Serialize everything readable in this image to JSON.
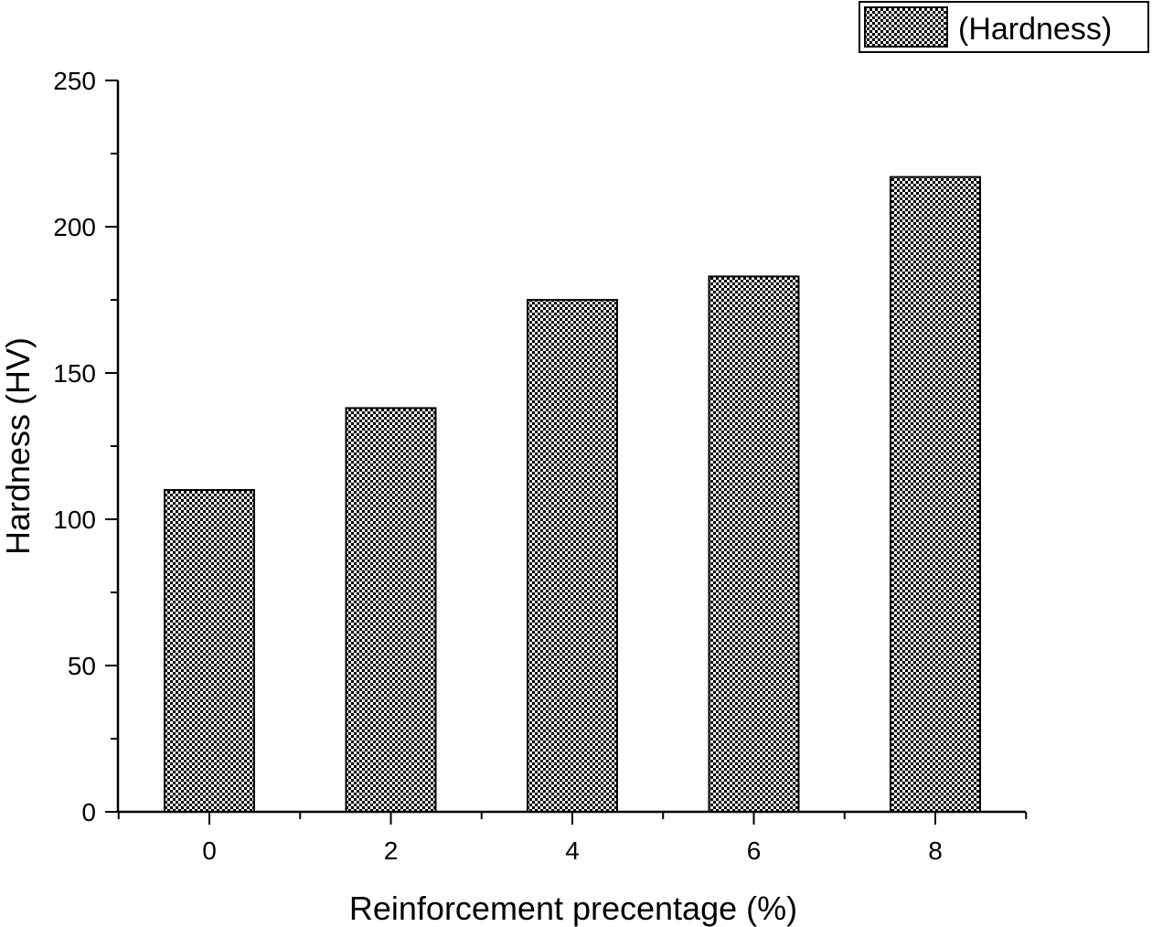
{
  "chart_data": {
    "type": "bar",
    "categories": [
      "0",
      "2",
      "4",
      "6",
      "8"
    ],
    "series": [
      {
        "name": "(Hardness)",
        "values": [
          110,
          138,
          175,
          183,
          217
        ]
      }
    ],
    "xlabel": "Reinforcement precentage (%)",
    "ylabel": "Hardness (HV)",
    "ylim": [
      0,
      250
    ],
    "yticks": [
      "0",
      "50",
      "100",
      "150",
      "200",
      "250"
    ],
    "grid": false,
    "legend_position": "top-right",
    "bar_fill": "checkered black and white pattern"
  }
}
